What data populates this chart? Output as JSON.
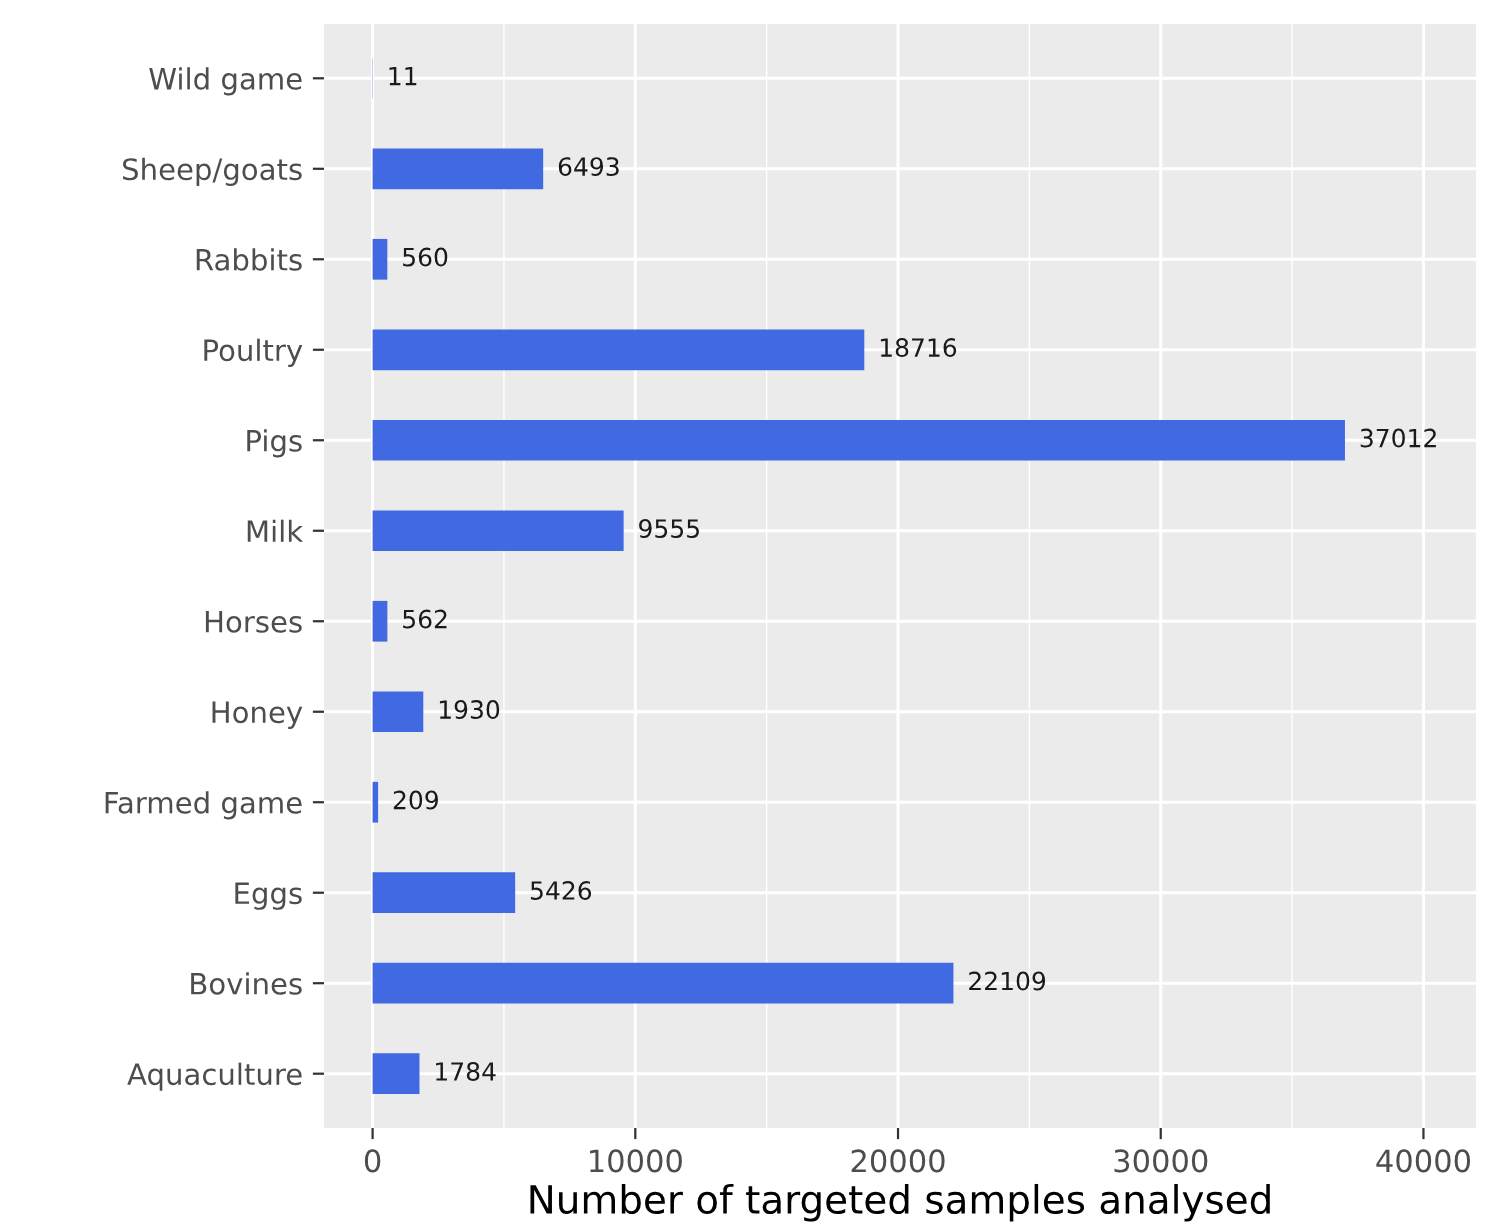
{
  "chart_data": {
    "type": "bar",
    "orientation": "horizontal",
    "xlabel": "Number of targeted samples analysed",
    "categories": [
      "Wild game",
      "Sheep/goats",
      "Rabbits",
      "Poultry",
      "Pigs",
      "Milk",
      "Horses",
      "Honey",
      "Farmed game",
      "Eggs",
      "Bovines",
      "Aquaculture"
    ],
    "values": [
      11,
      6493,
      560,
      18716,
      37012,
      9555,
      562,
      1930,
      209,
      5426,
      22109,
      1784
    ],
    "color": "#4169e1",
    "data_labels": true,
    "grid": true,
    "xlim": [
      -1850,
      42000
    ],
    "xticks": [
      0,
      10000,
      20000,
      30000,
      40000
    ]
  }
}
